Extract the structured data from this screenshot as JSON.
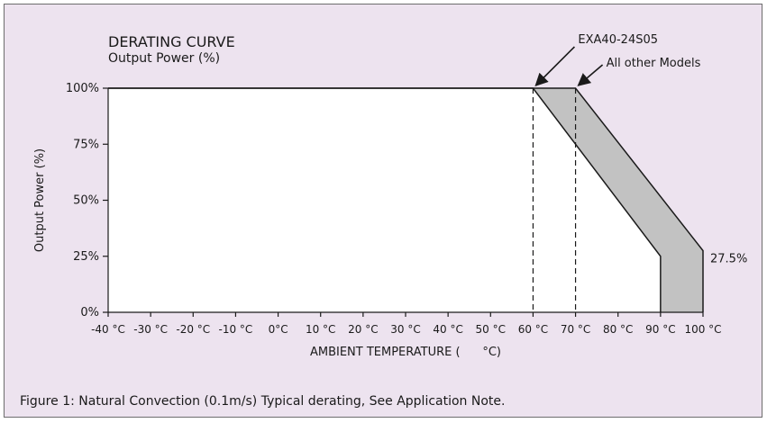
{
  "colors": {
    "background": "#ede3ef",
    "plot_area": "#ffffff",
    "band_fill": "#c2c2c2",
    "line": "#1a1a1a",
    "frame_border": "#6d6d6d"
  },
  "caption": "Figure 1: Natural Convection (0.1m/s) Typical derating, See Application Note.",
  "chart_data": {
    "type": "area",
    "title": "DERATING CURVE",
    "subtitle": "Output Power (%)",
    "xlabel": "AMBIENT TEMPERATURE (      °C)",
    "ylabel": "Output Power (%)",
    "xlim": [
      -40,
      100
    ],
    "ylim": [
      0,
      100
    ],
    "x_ticks": [
      -40,
      -30,
      -20,
      -10,
      0,
      10,
      20,
      30,
      40,
      50,
      60,
      70,
      80,
      90,
      100
    ],
    "x_tick_labels": [
      "-40 °C",
      "-30 °C",
      "-20 °C",
      "-10 °C",
      "0°C",
      "10 °C",
      "20 °C",
      "30 °C",
      "40 °C",
      "50 °C",
      "60 °C",
      "70 °C",
      "80 °C",
      "90 °C",
      "100 °C"
    ],
    "y_ticks": [
      0,
      25,
      50,
      75,
      100
    ],
    "y_tick_labels": [
      "0%",
      "25%",
      "50%",
      "75%",
      "100%"
    ],
    "series": [
      {
        "name": "EXA40-24S05",
        "x": [
          -40,
          60,
          90,
          90
        ],
        "y": [
          100,
          100,
          25,
          0
        ]
      },
      {
        "name": "All other Models",
        "x": [
          -40,
          70,
          100,
          100
        ],
        "y": [
          100,
          100,
          27.5,
          0
        ]
      }
    ],
    "vlines": [
      60,
      70
    ],
    "annotations": [
      {
        "text": "EXA40-24S05",
        "x": 60,
        "y": 100
      },
      {
        "text": "All other Models",
        "x": 70,
        "y": 100
      },
      {
        "text": "27.5%",
        "x": 100,
        "y": 27.5
      }
    ],
    "grid": false,
    "legend": "none"
  }
}
